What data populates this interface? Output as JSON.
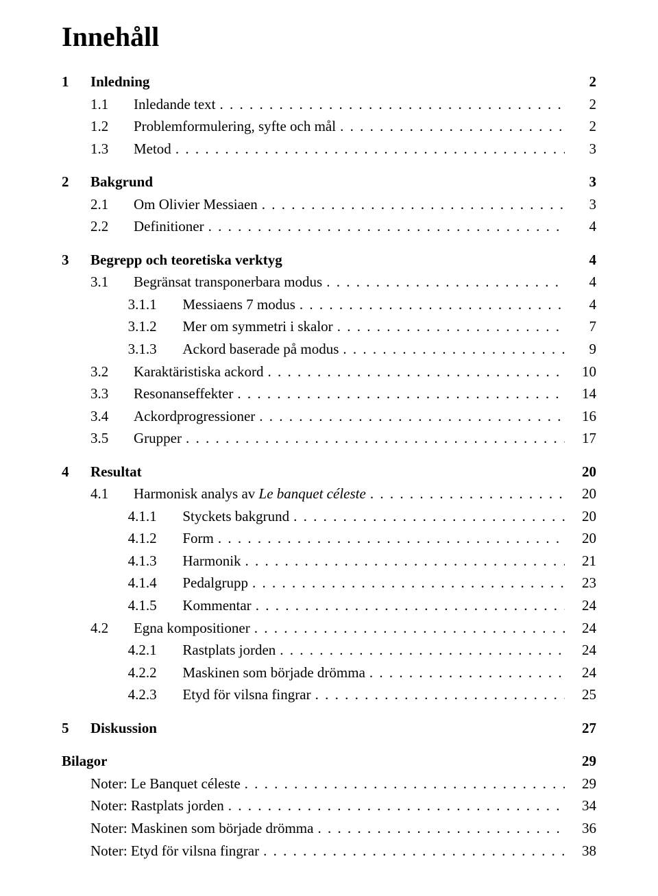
{
  "title": "Innehåll",
  "typography": {
    "title_fontsize_pt": 30,
    "body_fontsize_pt": 16,
    "font_family": "Linux Libertine / serif",
    "color": "#000000",
    "background": "#ffffff"
  },
  "sections": [
    {
      "num": "1",
      "title": "Inledning",
      "page": "2",
      "items": [
        {
          "num": "1.1",
          "title": "Inledande text",
          "page": "2"
        },
        {
          "num": "1.2",
          "title": "Problemformulering, syfte och mål",
          "page": "2"
        },
        {
          "num": "1.3",
          "title": "Metod",
          "page": "3"
        }
      ]
    },
    {
      "num": "2",
      "title": "Bakgrund",
      "page": "3",
      "items": [
        {
          "num": "2.1",
          "title": "Om Olivier Messiaen",
          "page": "3"
        },
        {
          "num": "2.2",
          "title": "Definitioner",
          "page": "4"
        }
      ]
    },
    {
      "num": "3",
      "title": "Begrepp och teoretiska verktyg",
      "page": "4",
      "items": [
        {
          "num": "3.1",
          "title": "Begränsat transponerbara modus",
          "page": "4",
          "sub": [
            {
              "num": "3.1.1",
              "title": "Messiaens 7 modus",
              "page": "4"
            },
            {
              "num": "3.1.2",
              "title": "Mer om symmetri i skalor",
              "page": "7"
            },
            {
              "num": "3.1.3",
              "title": "Ackord baserade på modus",
              "page": "9"
            }
          ]
        },
        {
          "num": "3.2",
          "title": "Karaktäristiska ackord",
          "page": "10"
        },
        {
          "num": "3.3",
          "title": "Resonanseffekter",
          "page": "14"
        },
        {
          "num": "3.4",
          "title": "Ackordprogressioner",
          "page": "16"
        },
        {
          "num": "3.5",
          "title": "Grupper",
          "page": "17"
        }
      ]
    },
    {
      "num": "4",
      "title": "Resultat",
      "page": "20",
      "items": [
        {
          "num": "4.1",
          "title_pre": "Harmonisk analys av ",
          "title_ital": "Le banquet céleste",
          "page": "20",
          "sub": [
            {
              "num": "4.1.1",
              "title": "Styckets bakgrund",
              "page": "20"
            },
            {
              "num": "4.1.2",
              "title": "Form",
              "page": "20"
            },
            {
              "num": "4.1.3",
              "title": "Harmonik",
              "page": "21"
            },
            {
              "num": "4.1.4",
              "title": "Pedalgrupp",
              "page": "23"
            },
            {
              "num": "4.1.5",
              "title": "Kommentar",
              "page": "24"
            }
          ]
        },
        {
          "num": "4.2",
          "title": "Egna kompositioner",
          "page": "24",
          "sub": [
            {
              "num": "4.2.1",
              "title": "Rastplats jorden",
              "page": "24"
            },
            {
              "num": "4.2.2",
              "title": "Maskinen som började drömma",
              "page": "24"
            },
            {
              "num": "4.2.3",
              "title": "Etyd för vilsna fingrar",
              "page": "25"
            }
          ]
        }
      ]
    },
    {
      "num": "5",
      "title": "Diskussion",
      "page": "27",
      "items": []
    }
  ],
  "bilagor": {
    "title": "Bilagor",
    "page": "29",
    "items": [
      {
        "title": "Noter: Le Banquet céleste",
        "page": "29"
      },
      {
        "title": "Noter: Rastplats jorden",
        "page": "34"
      },
      {
        "title": "Noter: Maskinen som började drömma",
        "page": "36"
      },
      {
        "title": "Noter: Etyd för vilsna fingrar",
        "page": "38"
      }
    ]
  }
}
